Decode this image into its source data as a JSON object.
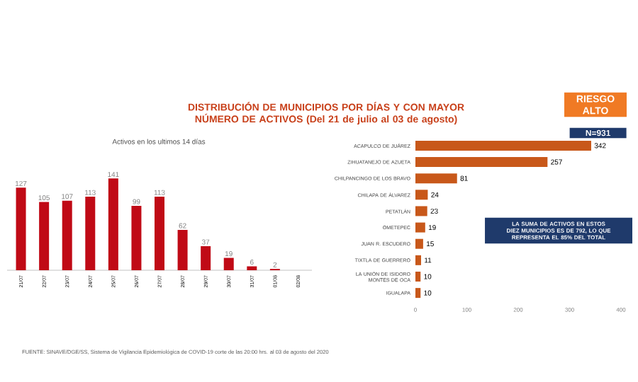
{
  "chart_data": [
    {
      "type": "bar",
      "title": "DISTRIBUCIÓN DE MUNICIPIOS POR DÍAS Y CON MAYOR NÚMERO DE ACTIVOS (Del 21 de julio al 03 de agosto)",
      "subtitle": "Activos en los ultimos 14 días",
      "categories": [
        "21/07",
        "22/07",
        "23/07",
        "24/07",
        "25/07",
        "26/07",
        "27/07",
        "28/07",
        "29/07",
        "30/07",
        "31/07",
        "01/08",
        "02/08"
      ],
      "values": [
        127,
        105,
        107,
        113,
        141,
        99,
        113,
        62,
        37,
        19,
        6,
        2,
        null
      ],
      "color": "#c00a16",
      "data_labels": true,
      "annotations": [
        "FUENTE: SINAVE/DGE/SS, Sistema de Vigilancia Epidemiológica de COVID-19 corte de las 20:00 hrs. al 03 de agosto del 2020"
      ]
    },
    {
      "type": "bar",
      "orientation": "horizontal",
      "categories": [
        "ACAPULCO DE JUÁREZ",
        "ZIHUATANEJO DE AZUETA",
        "CHILPANCINGO DE LOS BRAVO",
        "CHILAPA DE ÁLVAREZ",
        "PETATLÁN",
        "OMETEPEC",
        "JUAN R. ESCUDERO",
        "TIXTLA DE GUERRERO",
        "LA UNIÓN DE ISIDORO MONTES DE OCA",
        "IGUALAPA"
      ],
      "values": [
        342,
        257,
        81,
        24,
        23,
        19,
        15,
        11,
        10,
        10
      ],
      "color": "#c8581a",
      "data_labels": true,
      "xlim": [
        0,
        400
      ],
      "xticks": [
        0,
        100,
        200,
        300,
        400
      ],
      "annotations": [
        "RIESGO ALTO",
        "N=931",
        "LA SUMA DE ACTIVOS EN ESTOS DIEZ MUNICIPIOS ES DE 792, LO QUE REPRESENTA EL 85% DEL TOTAL"
      ]
    }
  ]
}
